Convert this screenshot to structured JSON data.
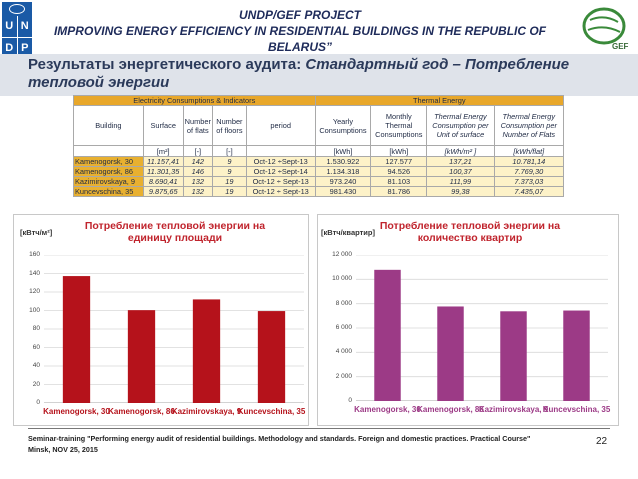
{
  "header": {
    "logo_letters": [
      "U",
      "N",
      "D",
      "P"
    ],
    "project_line1": "UNDP/GEF PROJECT",
    "project_line2": "IMPROVING ENERGY EFFICIENCY IN RESIDENTIAL BUILDINGS IN THE REPUBLIC OF BELARUS”",
    "gef_label": "GEF"
  },
  "slide": {
    "title_normal": "Результаты энергетического аудита: ",
    "title_italic": "Стандартный год – Потребление тепловой энергии"
  },
  "table": {
    "group_left": "Electricity Consumptions & Indicators",
    "group_right": "Thermal Energy",
    "headers": [
      "Building",
      "Surface",
      "Number of flats",
      "Number of floors",
      "period",
      "Yearly Consumptions",
      "Monthly Thermal Consumptions",
      "Thermal Energy Consumption per Unit of surface",
      "Thermal Energy Consumption per Number of Flats"
    ],
    "units": [
      "",
      "[m²]",
      "[-]",
      "[-]",
      "",
      "[kWh]",
      "[kWh]",
      "[kWh/m² ]",
      "[kWh/flat]"
    ],
    "rows": [
      [
        "Kamenogorsk, 30",
        "11.157,41",
        "142",
        "9",
        "Oct-12 ÷Sept-13",
        "1.530.922",
        "127.577",
        "137,21",
        "10.781,14"
      ],
      [
        "Kamenogorsk, 86",
        "11.301,35",
        "146",
        "9",
        "Oct-12 ÷Sept-14",
        "1.134.318",
        "94.526",
        "100,37",
        "7.769,30"
      ],
      [
        "Kazimirovskaya, 9",
        "8.690,41",
        "132",
        "19",
        "Oct-12 ÷ Sept-13",
        "973.240",
        "81.103",
        "111,99",
        "7.373,03"
      ],
      [
        "Kuncevschina, 35",
        "9.875,65",
        "132",
        "19",
        "Oct-12 ÷ Sept-13",
        "981.430",
        "81.786",
        "99,38",
        "7.435,07"
      ]
    ]
  },
  "chart_data": [
    {
      "type": "bar",
      "title": "Потребление тепловой энергии на единицу площади",
      "ylabel": "[кВтч/м²]",
      "categories": [
        "Kamenogorsk, 30",
        "Kamenogorsk, 86",
        "Kazimirovskaya, 9",
        "Kuncevschina, 35"
      ],
      "values": [
        137.21,
        100.37,
        111.99,
        99.38
      ],
      "ylim": [
        0,
        160
      ],
      "yticks": [
        "0",
        "20",
        "40",
        "60",
        "80",
        "100",
        "120",
        "140",
        "160"
      ],
      "bar_color": "#b5121b",
      "grid": true
    },
    {
      "type": "bar",
      "title": "Потребление тепловой энергии на количество квартир",
      "ylabel": "[кВтч/квартир]",
      "categories": [
        "Kamenogorsk, 30",
        "Kamenogorsk, 86",
        "Kazimirovskaya, 9",
        "Kuncevschina, 35"
      ],
      "values": [
        10781.14,
        7769.3,
        7373.03,
        7435.07
      ],
      "ylim": [
        0,
        12000
      ],
      "yticks": [
        "0",
        "2 000",
        "4 000",
        "6 000",
        "8 000",
        "10 000",
        "12 000"
      ],
      "bar_color": "#9c3a86",
      "grid": true
    }
  ],
  "footer": {
    "line1": "Seminar-training \"Performing energy audit of residential buildings. Methodology and standards. Foreign and domestic practices. Practical Course\"",
    "line2": "Minsk, NOV 25, 2015",
    "page_number": "22"
  }
}
